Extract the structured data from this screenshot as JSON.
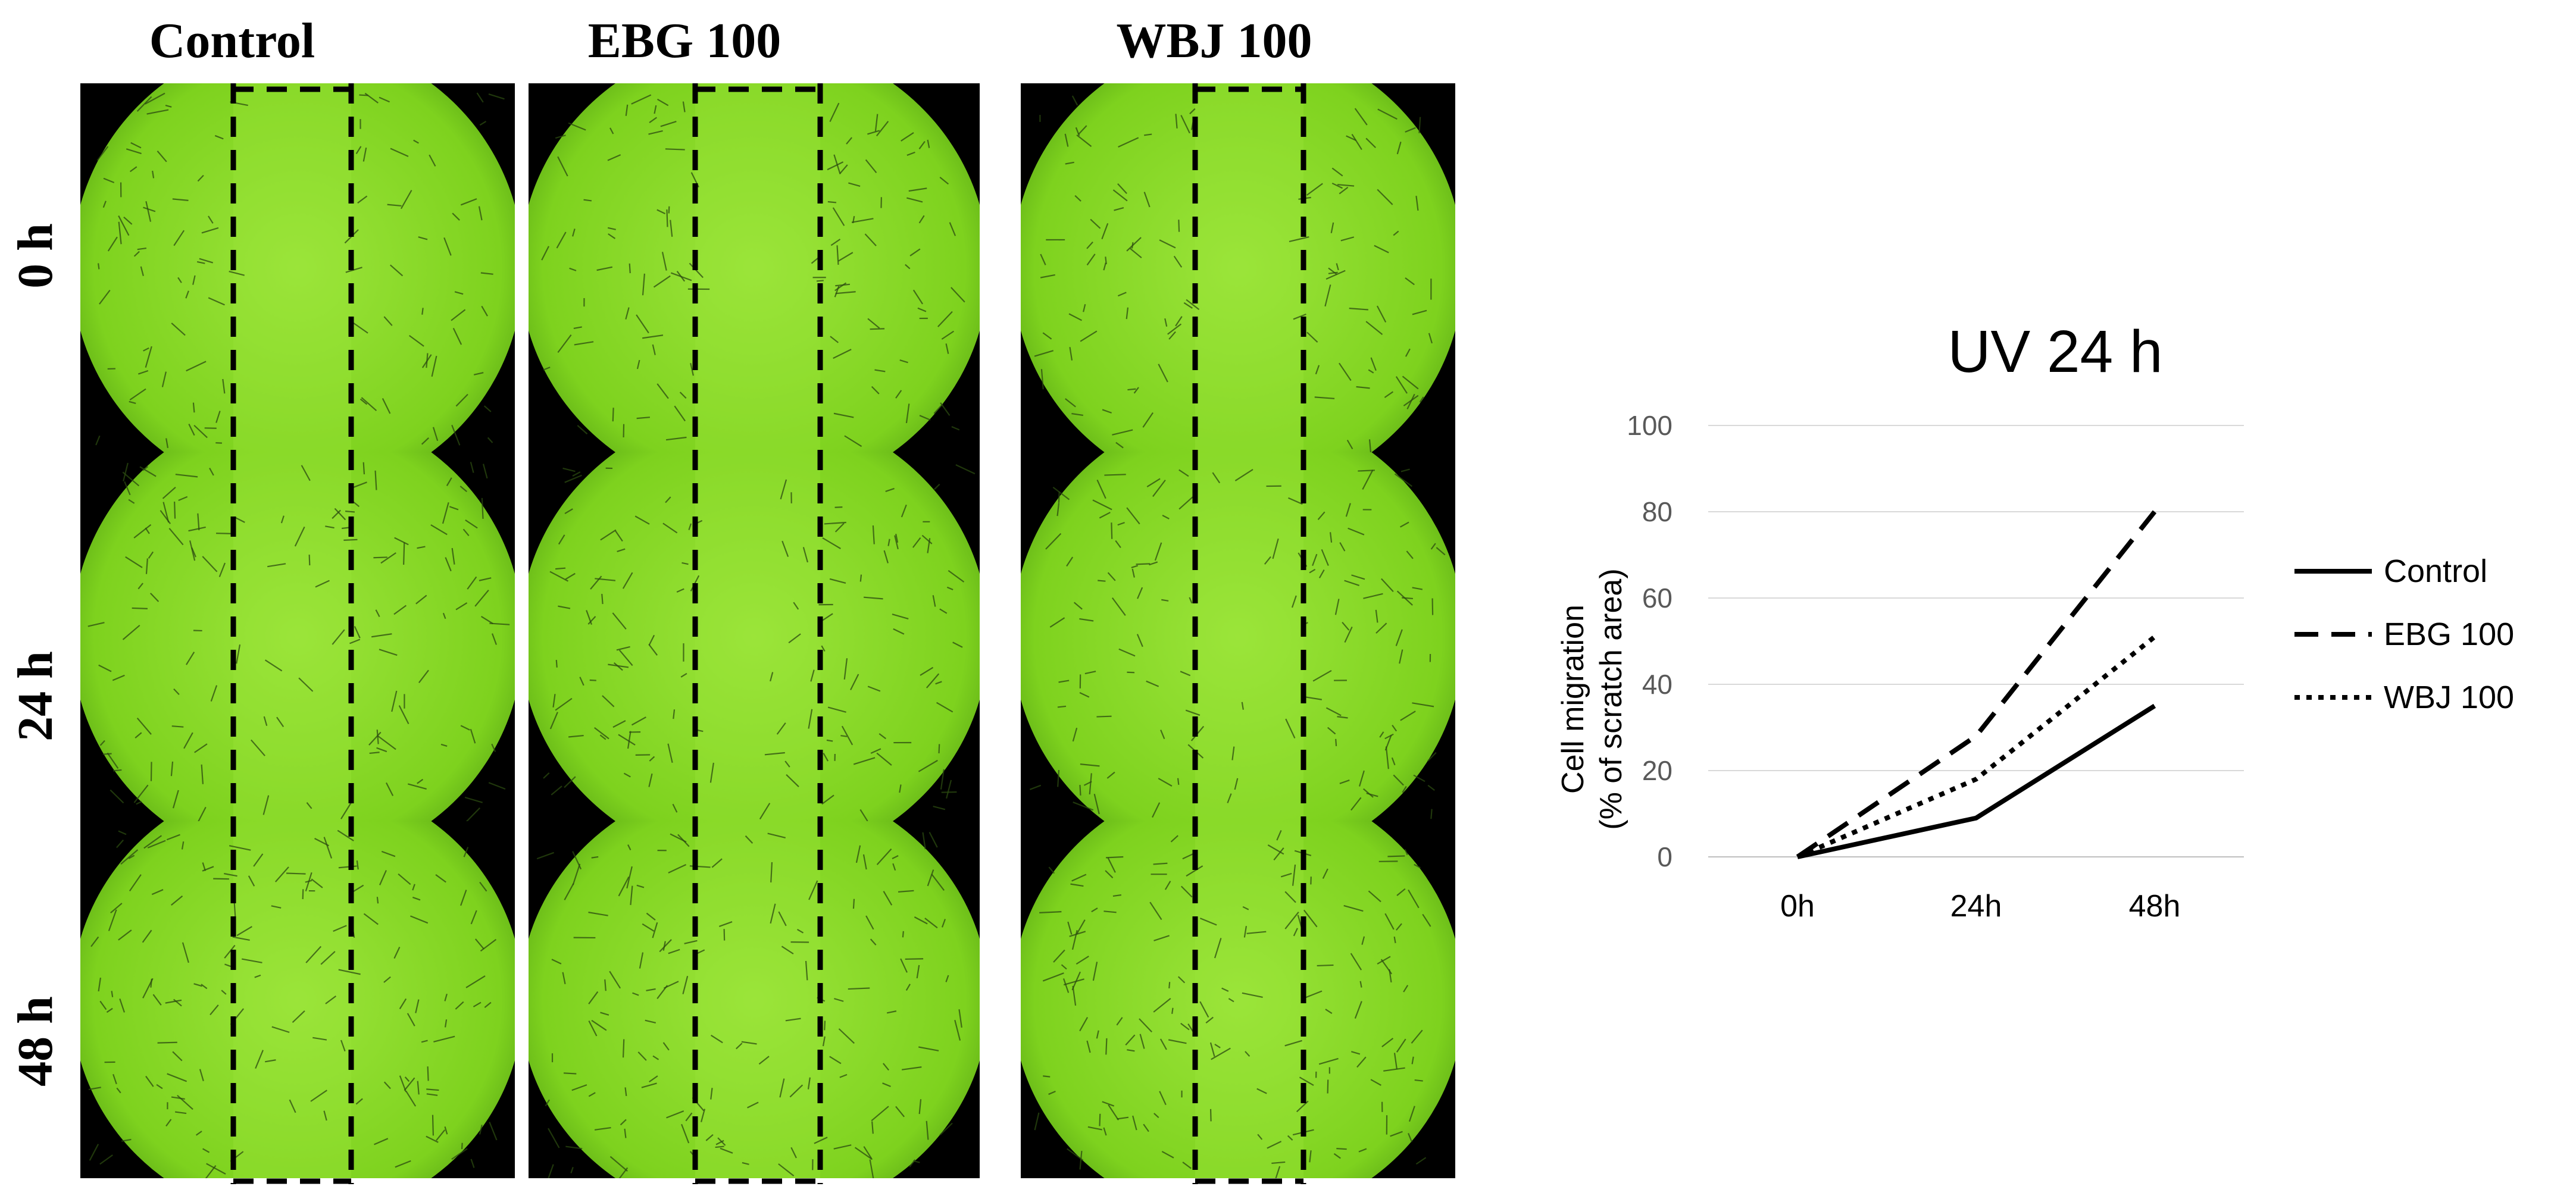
{
  "figure": {
    "column_headers": [
      "Control",
      "EBG 100",
      "WBJ 100"
    ],
    "row_labels": [
      "0 h",
      "24 h",
      "48 h"
    ],
    "colors": {
      "well_fill": "#7ed21e",
      "well_edge": "#4e9a12",
      "scratch_band": "#9be43a",
      "background": "#000000",
      "marker": "#000000"
    },
    "panel_icons": [
      "microscopy-well-image"
    ]
  },
  "chart_data": {
    "type": "line",
    "title": "UV 24 h",
    "ylabel_line1": "Cell migration",
    "ylabel_line2": "(% of scratch area)",
    "xlabel": "",
    "categories": [
      "0h",
      "24h",
      "48h"
    ],
    "ylim": [
      0,
      100
    ],
    "yticks": [
      0,
      20,
      40,
      60,
      80,
      100
    ],
    "grid": true,
    "legend_position": "right",
    "series": [
      {
        "name": "Control",
        "values": [
          0,
          9,
          35
        ],
        "dash": "solid"
      },
      {
        "name": "EBG 100",
        "values": [
          0,
          28,
          80
        ],
        "dash": "dashed"
      },
      {
        "name": "WBJ 100",
        "values": [
          0,
          18,
          51
        ],
        "dash": "dotted"
      }
    ]
  }
}
